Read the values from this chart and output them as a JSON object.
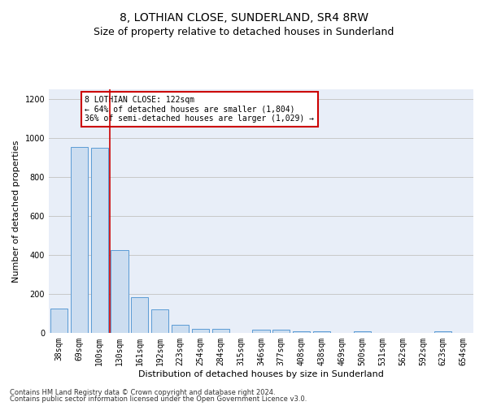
{
  "title": "8, LOTHIAN CLOSE, SUNDERLAND, SR4 8RW",
  "subtitle": "Size of property relative to detached houses in Sunderland",
  "xlabel": "Distribution of detached houses by size in Sunderland",
  "ylabel": "Number of detached properties",
  "footer1": "Contains HM Land Registry data © Crown copyright and database right 2024.",
  "footer2": "Contains public sector information licensed under the Open Government Licence v3.0.",
  "categories": [
    "38sqm",
    "69sqm",
    "100sqm",
    "130sqm",
    "161sqm",
    "192sqm",
    "223sqm",
    "254sqm",
    "284sqm",
    "315sqm",
    "346sqm",
    "377sqm",
    "408sqm",
    "438sqm",
    "469sqm",
    "500sqm",
    "531sqm",
    "562sqm",
    "592sqm",
    "623sqm",
    "654sqm"
  ],
  "values": [
    125,
    955,
    948,
    425,
    185,
    120,
    43,
    20,
    20,
    0,
    15,
    15,
    10,
    10,
    0,
    10,
    0,
    0,
    0,
    10,
    0
  ],
  "bar_color": "#ccddf0",
  "bar_edge_color": "#5b9bd5",
  "bar_width": 0.85,
  "red_line_x": 2.5,
  "red_line_color": "#cc0000",
  "annotation_text": "8 LOTHIAN CLOSE: 122sqm\n← 64% of detached houses are smaller (1,804)\n36% of semi-detached houses are larger (1,029) →",
  "annotation_box_color": "#ffffff",
  "annotation_edge_color": "#cc0000",
  "ylim": [
    0,
    1250
  ],
  "yticks": [
    0,
    200,
    400,
    600,
    800,
    1000,
    1200
  ],
  "grid_color": "#c8c8c8",
  "bg_color": "#e8eef8",
  "title_fontsize": 10,
  "subtitle_fontsize": 9,
  "xlabel_fontsize": 8,
  "ylabel_fontsize": 8,
  "tick_fontsize": 7,
  "ann_fontsize": 7,
  "footer_fontsize": 6
}
